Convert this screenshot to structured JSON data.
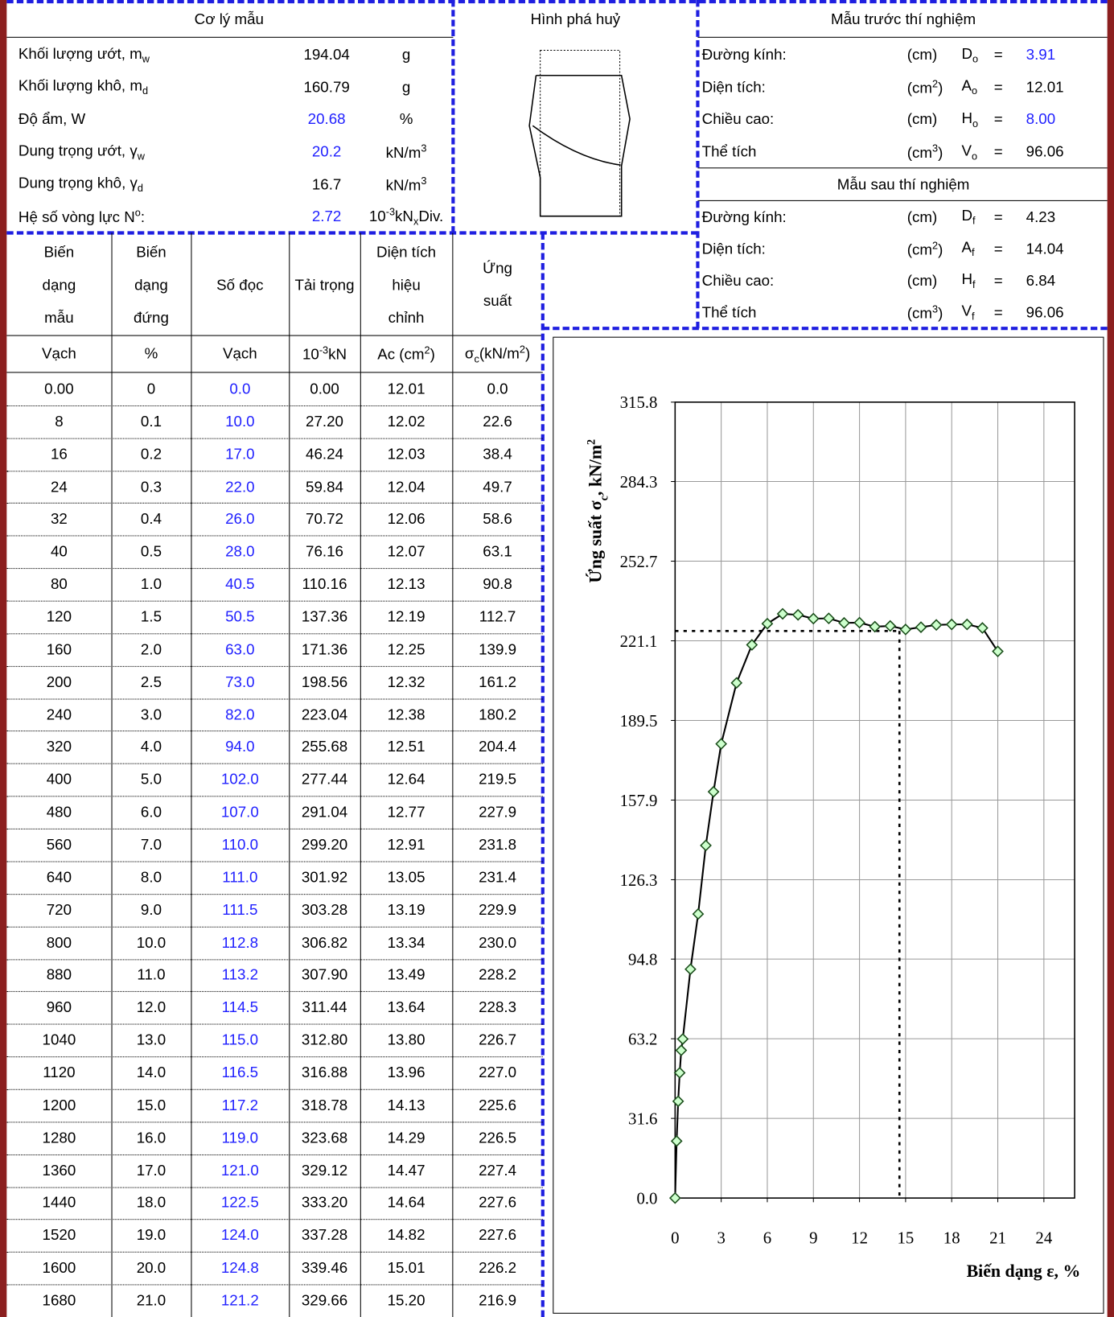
{
  "sample_props": {
    "title": "Cơ lý mẫu",
    "rows": [
      {
        "label": [
          {
            "t": "Khối lượng ướt, m"
          },
          {
            "sub": "w"
          }
        ],
        "value": "194.04",
        "unit": "g"
      },
      {
        "label": [
          {
            "t": "Khối lượng khô, m"
          },
          {
            "sub": "d"
          }
        ],
        "value": "160.79",
        "unit": "g"
      },
      {
        "label": "Độ ẩm, W",
        "value": "20.68",
        "unit": "%",
        "color": "#1f1fff"
      },
      {
        "label": [
          {
            "t": "Dung trọng ướt, γ"
          },
          {
            "sub": "w"
          }
        ],
        "value": "20.2",
        "unit": [
          {
            "t": "kN/m"
          },
          {
            "sup": "3"
          }
        ],
        "color": "#1f1fff"
      },
      {
        "label": [
          {
            "t": "Dung trọng khô, γ"
          },
          {
            "sub": "d"
          }
        ],
        "value": "16.7",
        "unit": [
          {
            "t": "kN/m"
          },
          {
            "sup": "3"
          }
        ]
      },
      {
        "label": [
          {
            "t": "Hệ số vòng lực N"
          },
          {
            "sup": "o"
          },
          {
            "t": ":"
          }
        ],
        "value": "2.72",
        "unit": [
          {
            "t": "10"
          },
          {
            "sup": "-3"
          },
          {
            "t": "kN"
          },
          {
            "sub": "x"
          },
          {
            "t": "Div."
          }
        ],
        "color": "#1f1fff"
      }
    ]
  },
  "failure": {
    "title": "Hình phá huỷ"
  },
  "before": {
    "title": "Mẫu trước thí nghiệm",
    "rows": [
      {
        "label": "Đường kính:",
        "unit": "(cm)",
        "symbol": [
          {
            "t": "D"
          },
          {
            "sub": "o"
          }
        ],
        "eq": "=",
        "value": "3.91",
        "color": "#1f1fff"
      },
      {
        "label": "Diện tích:",
        "unit": [
          {
            "t": "(cm"
          },
          {
            "sup": "2"
          },
          {
            "t": ")"
          }
        ],
        "symbol": [
          {
            "t": "A"
          },
          {
            "sub": "o"
          }
        ],
        "eq": "=",
        "value": "12.01"
      },
      {
        "label": "Chiều cao:",
        "unit": "(cm)",
        "symbol": [
          {
            "t": "H"
          },
          {
            "sub": "o"
          }
        ],
        "eq": "=",
        "value": "8.00",
        "color": "#1f1fff"
      },
      {
        "label": "Thể tích",
        "unit": [
          {
            "t": "(cm"
          },
          {
            "sup": "3"
          },
          {
            "t": ")"
          }
        ],
        "symbol": [
          {
            "t": "V"
          },
          {
            "sub": "o"
          }
        ],
        "eq": "=",
        "value": "96.06"
      }
    ]
  },
  "after": {
    "title": "Mẫu sau thí nghiệm",
    "rows": [
      {
        "label": "Đường kính:",
        "unit": "(cm)",
        "symbol": [
          {
            "t": "D"
          },
          {
            "sub": "f"
          }
        ],
        "eq": "=",
        "value": "4.23"
      },
      {
        "label": "Diện tích:",
        "unit": [
          {
            "t": "(cm"
          },
          {
            "sup": "2"
          },
          {
            "t": ")"
          }
        ],
        "symbol": [
          {
            "t": "A"
          },
          {
            "sub": "f"
          }
        ],
        "eq": "=",
        "value": "14.04"
      },
      {
        "label": "Chiều cao:",
        "unit": "(cm)",
        "symbol": [
          {
            "t": "H"
          },
          {
            "sub": "f"
          }
        ],
        "eq": "=",
        "value": "6.84"
      },
      {
        "label": "Thể tích",
        "unit": [
          {
            "t": "(cm"
          },
          {
            "sup": "3"
          },
          {
            "t": ")"
          }
        ],
        "symbol": [
          {
            "t": "V"
          },
          {
            "sub": "f"
          }
        ],
        "eq": "=",
        "value": "96.06"
      }
    ]
  },
  "table": {
    "columns": [
      {
        "lines": [
          "Biến",
          "dạng",
          "mẫu"
        ],
        "unit": "Vạch"
      },
      {
        "lines": [
          "Biến",
          "dạng",
          "đứng"
        ],
        "unit": "%"
      },
      {
        "lines": [
          "Số đọc"
        ],
        "unit": "Vạch",
        "color": "#1f1fff"
      },
      {
        "lines": [
          "Tải trọng"
        ],
        "unit": [
          {
            "t": "10"
          },
          {
            "sup": "-3"
          },
          {
            "t": "kN"
          }
        ]
      },
      {
        "lines": [
          "Diện tích",
          "hiệu",
          "chỉnh"
        ],
        "unit": [
          {
            "t": "Ac (cm"
          },
          {
            "sup": "2"
          },
          {
            "t": ")"
          }
        ]
      },
      {
        "lines": [
          "Ứng",
          "suất"
        ],
        "unit": [
          {
            "t": "σ"
          },
          {
            "sub": "c"
          },
          {
            "t": "(kN/m"
          },
          {
            "sup": "2"
          },
          {
            "t": ")"
          }
        ]
      }
    ],
    "rows": [
      [
        "0.00",
        "0",
        "0.0",
        "0.00",
        "12.01",
        "0.0"
      ],
      [
        "8",
        "0.1",
        "10.0",
        "27.20",
        "12.02",
        "22.6"
      ],
      [
        "16",
        "0.2",
        "17.0",
        "46.24",
        "12.03",
        "38.4"
      ],
      [
        "24",
        "0.3",
        "22.0",
        "59.84",
        "12.04",
        "49.7"
      ],
      [
        "32",
        "0.4",
        "26.0",
        "70.72",
        "12.06",
        "58.6"
      ],
      [
        "40",
        "0.5",
        "28.0",
        "76.16",
        "12.07",
        "63.1"
      ],
      [
        "80",
        "1.0",
        "40.5",
        "110.16",
        "12.13",
        "90.8"
      ],
      [
        "120",
        "1.5",
        "50.5",
        "137.36",
        "12.19",
        "112.7"
      ],
      [
        "160",
        "2.0",
        "63.0",
        "171.36",
        "12.25",
        "139.9"
      ],
      [
        "200",
        "2.5",
        "73.0",
        "198.56",
        "12.32",
        "161.2"
      ],
      [
        "240",
        "3.0",
        "82.0",
        "223.04",
        "12.38",
        "180.2"
      ],
      [
        "320",
        "4.0",
        "94.0",
        "255.68",
        "12.51",
        "204.4"
      ],
      [
        "400",
        "5.0",
        "102.0",
        "277.44",
        "12.64",
        "219.5"
      ],
      [
        "480",
        "6.0",
        "107.0",
        "291.04",
        "12.77",
        "227.9"
      ],
      [
        "560",
        "7.0",
        "110.0",
        "299.20",
        "12.91",
        "231.8"
      ],
      [
        "640",
        "8.0",
        "111.0",
        "301.92",
        "13.05",
        "231.4"
      ],
      [
        "720",
        "9.0",
        "111.5",
        "303.28",
        "13.19",
        "229.9"
      ],
      [
        "800",
        "10.0",
        "112.8",
        "306.82",
        "13.34",
        "230.0"
      ],
      [
        "880",
        "11.0",
        "113.2",
        "307.90",
        "13.49",
        "228.2"
      ],
      [
        "960",
        "12.0",
        "114.5",
        "311.44",
        "13.64",
        "228.3"
      ],
      [
        "1040",
        "13.0",
        "115.0",
        "312.80",
        "13.80",
        "226.7"
      ],
      [
        "1120",
        "14.0",
        "116.5",
        "316.88",
        "13.96",
        "227.0"
      ],
      [
        "1200",
        "15.0",
        "117.2",
        "318.78",
        "14.13",
        "225.6"
      ],
      [
        "1280",
        "16.0",
        "119.0",
        "323.68",
        "14.29",
        "226.5"
      ],
      [
        "1360",
        "17.0",
        "121.0",
        "329.12",
        "14.47",
        "227.4"
      ],
      [
        "1440",
        "18.0",
        "122.5",
        "333.20",
        "14.64",
        "227.6"
      ],
      [
        "1520",
        "19.0",
        "124.0",
        "337.28",
        "14.82",
        "227.6"
      ],
      [
        "1600",
        "20.0",
        "124.8",
        "339.46",
        "15.01",
        "226.2"
      ],
      [
        "1680",
        "21.0",
        "121.2",
        "329.66",
        "15.20",
        "216.9"
      ]
    ]
  },
  "chart_data": {
    "type": "scatter",
    "x": [
      0,
      0.1,
      0.2,
      0.3,
      0.4,
      0.5,
      1.0,
      1.5,
      2.0,
      2.5,
      3.0,
      4.0,
      5.0,
      6.0,
      7.0,
      8.0,
      9.0,
      10.0,
      11.0,
      12.0,
      13.0,
      14.0,
      15.0,
      16.0,
      17.0,
      18.0,
      19.0,
      20.0,
      21.0
    ],
    "series": [
      {
        "color": "#ccffcc",
        "values": [
          0.0,
          22.6,
          38.4,
          49.7,
          58.6,
          63.1,
          90.8,
          112.7,
          139.9,
          161.2,
          180.2,
          204.4,
          219.5,
          227.9,
          231.8,
          231.4,
          229.9,
          230.0,
          228.2,
          228.3,
          226.7,
          227.0,
          225.6,
          226.5,
          227.4,
          227.6,
          227.6,
          226.2,
          216.9
        ]
      }
    ],
    "line": true,
    "xlim": [
      0,
      26
    ],
    "xticks": [
      0,
      3,
      6,
      9,
      12,
      15,
      18,
      21,
      24
    ],
    "ylim": [
      0,
      315.8
    ],
    "yticks": [
      {
        "value": 0,
        "label": "0.0"
      },
      31.6,
      63.2,
      94.8,
      126.3,
      157.9,
      189.5,
      221.1,
      252.7,
      284.3,
      315.8
    ],
    "grid": true,
    "guide": {
      "x": 14.6,
      "y": 225.0
    },
    "ylabel": [
      {
        "t": "Ứng suất σ"
      },
      {
        "sub": "c"
      },
      {
        "t": ", kN/m"
      },
      {
        "sup": "2"
      }
    ],
    "xlabel": "Biến dạng ε, %"
  }
}
